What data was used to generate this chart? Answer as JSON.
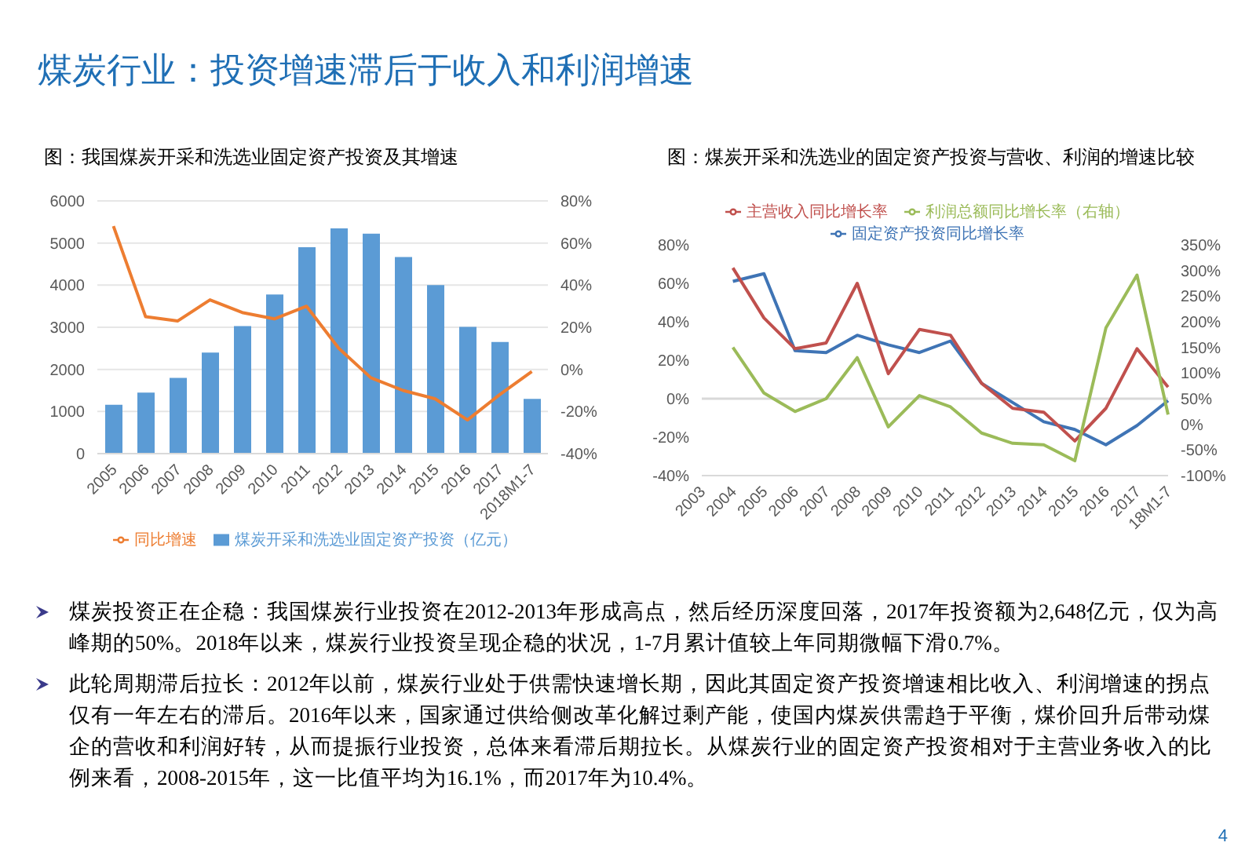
{
  "chart_data": [
    {
      "type": "bar",
      "title": "图：我国煤炭开采和洗选业固定资产投资及其增速",
      "annotations": [
        "煤炭行业：投资增速滞后于收入和利润增速",
        "4"
      ],
      "categories": [
        "2005",
        "2006",
        "2007",
        "2008",
        "2009",
        "2010",
        "2011",
        "2012",
        "2013",
        "2014",
        "2015",
        "2016",
        "2017",
        "2018M1-7"
      ],
      "series": [
        {
          "name": "煤炭开采和洗选业固定资产投资（亿元）",
          "color": "#5b9bd5",
          "values": [
            1160,
            1450,
            1800,
            2400,
            3030,
            3780,
            4900,
            5350,
            5220,
            4670,
            4000,
            3010,
            2650,
            1300
          ]
        },
        {
          "name": "同比增速",
          "type": "line",
          "axis": "y2",
          "color": "#ed7d31",
          "values": [
            68,
            25,
            23,
            33,
            27,
            24,
            30,
            10,
            -4,
            -10,
            -14,
            -24,
            -12,
            -1
          ]
        }
      ],
      "ylim": [
        0,
        6000
      ],
      "yticks": [
        0,
        1000,
        2000,
        3000,
        4000,
        5000,
        6000
      ],
      "y2lim": [
        -40,
        80
      ],
      "y2ticks": [
        {
          "value": -40,
          "label": "-40%"
        },
        {
          "value": -20,
          "label": "-20%"
        },
        {
          "value": 0,
          "label": "0%"
        },
        {
          "value": 20,
          "label": "20%"
        },
        {
          "value": 40,
          "label": "40%"
        },
        {
          "value": 60,
          "label": "60%"
        },
        {
          "value": 80,
          "label": "80%"
        }
      ],
      "grid": "y",
      "legend": "bottom"
    },
    {
      "type": "line",
      "title": "图：煤炭开采和洗选业的固定资产投资与营收、利润的增速比较",
      "annotations": [
        "煤炭投资正在企稳：我国煤炭行业投资在2012-2013年形成高点，然后经历深度回落，2017年投资额为2,648亿元，仅为高峰期的50%。2018年以来，煤炭行业投资呈现企稳的状况，1-7月累计值较上年同期微幅下滑0.7%。",
        "此轮周期滞后拉长：2012年以前，煤炭行业处于供需快速增长期，因此其固定资产投资增速相比收入、利润增速的拐点仅有一年左右的滞后。2016年以来，国家通过供给侧改革化解过剩产能，使国内煤炭供需趋于平衡，煤价回升后带动煤企的营收和利润好转，从而提振行业投资，总体来看滞后期拉长。从煤炭行业的固定资产投资相对于主营业务收入的比例来看，2008-2015年，这一比值平均为16.1%，而2017年为10.4%。"
      ],
      "categories": [
        "2003",
        "2004",
        "2005",
        "2006",
        "2007",
        "2008",
        "2009",
        "2010",
        "2011",
        "2012",
        "2013",
        "2014",
        "2015",
        "2016",
        "2017",
        "18M1-7"
      ],
      "series": [
        {
          "name": "固定资产投资同比增长率",
          "color": "#3f74b5",
          "values": [
            null,
            61,
            65,
            25,
            24,
            33,
            28,
            24,
            30,
            8,
            -2,
            -12,
            -16,
            -24,
            -14,
            -1
          ]
        },
        {
          "name": "主营收入同比增长率",
          "color": "#c0504d",
          "values": [
            null,
            68,
            42,
            26,
            29,
            60,
            13,
            36,
            33,
            8,
            -5,
            -7,
            -22,
            -5,
            26,
            6
          ]
        },
        {
          "name": "利润总额同比增长率（右轴）",
          "axis": "y2",
          "color": "#9bbb59",
          "values": [
            null,
            150,
            61,
            25,
            50,
            130,
            -5,
            56,
            34,
            -17,
            -37,
            -40,
            -71,
            188,
            291,
            19
          ]
        }
      ],
      "ylim": [
        -40,
        80
      ],
      "yticks": [
        {
          "value": -40,
          "label": "-40%"
        },
        {
          "value": -20,
          "label": "-20%"
        },
        {
          "value": 0,
          "label": "0%"
        },
        {
          "value": 20,
          "label": "20%"
        },
        {
          "value": 40,
          "label": "40%"
        },
        {
          "value": 60,
          "label": "60%"
        },
        {
          "value": 80,
          "label": "80%"
        }
      ],
      "y2lim": [
        -100,
        350
      ],
      "y2ticks": [
        {
          "value": -100,
          "label": "-100%"
        },
        {
          "value": -50,
          "label": "-50%"
        },
        {
          "value": 0,
          "label": "0%"
        },
        {
          "value": 50,
          "label": "50%"
        },
        {
          "value": 100,
          "label": "100%"
        },
        {
          "value": 150,
          "label": "150%"
        },
        {
          "value": 200,
          "label": "200%"
        },
        {
          "value": 250,
          "label": "250%"
        },
        {
          "value": 300,
          "label": "300%"
        },
        {
          "value": 350,
          "label": "350%"
        }
      ],
      "ref_lines": [
        {
          "axis": "y",
          "value": 0,
          "color": "#d9d9d9"
        }
      ],
      "legend": "top"
    }
  ]
}
